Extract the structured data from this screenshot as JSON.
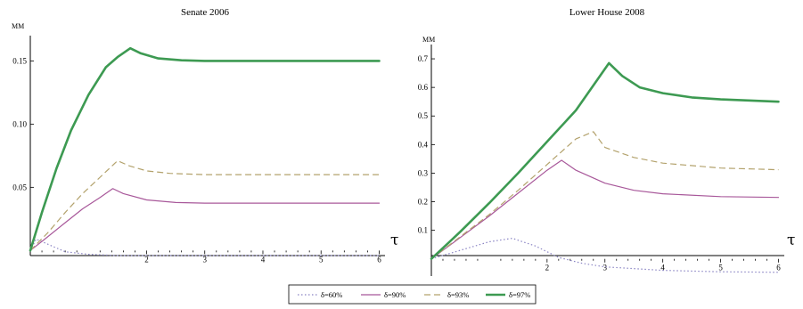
{
  "legend": {
    "items": [
      {
        "label": "δ=60%",
        "color": "#8a84c4",
        "dash": "1.5,2.5",
        "width": 1.2
      },
      {
        "label": "δ=90%",
        "color": "#a8589a",
        "dash": "",
        "width": 1.2
      },
      {
        "label": "δ=93%",
        "color": "#b3a26c",
        "dash": "7,4",
        "width": 1.2
      },
      {
        "label": "δ=97%",
        "color": "#3d9a52",
        "dash": "",
        "width": 2.6
      }
    ]
  },
  "chart_data": [
    {
      "type": "line",
      "title": "Senate 2006",
      "ylabel": "MM",
      "xlabel": "τ",
      "xlim": [
        0,
        6.1
      ],
      "ylim": [
        -0.004,
        0.17
      ],
      "xticks": [
        2,
        3,
        4,
        5,
        6
      ],
      "yticks": [
        0.05,
        0.1,
        0.15
      ],
      "ytick_labels": [
        "0.05",
        "0.10",
        "0.15"
      ],
      "series": [
        {
          "name": "δ=60%",
          "x": [
            0,
            0.1,
            0.3,
            0.6,
            1.0,
            1.5,
            2.0,
            3.0,
            4.0,
            5.0,
            6.0
          ],
          "y": [
            0,
            0.009,
            0.005,
            -0.001,
            -0.003,
            -0.004,
            -0.004,
            -0.004,
            -0.004,
            -0.004,
            -0.004
          ]
        },
        {
          "name": "δ=90%",
          "x": [
            0,
            0.25,
            0.6,
            0.9,
            1.2,
            1.42,
            1.6,
            2.0,
            2.5,
            3.0,
            4.0,
            5.0,
            6.0
          ],
          "y": [
            0,
            0.009,
            0.022,
            0.033,
            0.042,
            0.049,
            0.045,
            0.04,
            0.038,
            0.0375,
            0.0375,
            0.0375,
            0.0375
          ]
        },
        {
          "name": "δ=93%",
          "x": [
            0,
            0.3,
            0.6,
            0.9,
            1.2,
            1.5,
            1.7,
            2.0,
            2.4,
            3.0,
            4.0,
            5.0,
            6.0
          ],
          "y": [
            0,
            0.014,
            0.03,
            0.045,
            0.058,
            0.071,
            0.067,
            0.063,
            0.061,
            0.06,
            0.06,
            0.06,
            0.06
          ]
        },
        {
          "name": "δ=97%",
          "x": [
            0,
            0.2,
            0.45,
            0.7,
            1.0,
            1.3,
            1.5,
            1.72,
            1.9,
            2.2,
            2.6,
            3.0,
            4.0,
            5.0,
            6.0
          ],
          "y": [
            0,
            0.03,
            0.065,
            0.095,
            0.123,
            0.145,
            0.153,
            0.16,
            0.156,
            0.152,
            0.1505,
            0.15,
            0.15,
            0.15,
            0.15
          ]
        }
      ]
    },
    {
      "type": "line",
      "title": "Lower House 2008",
      "ylabel": "MM",
      "xlabel": "τ",
      "xlim": [
        0,
        6.1
      ],
      "ylim": [
        -0.06,
        0.75
      ],
      "xticks": [
        2,
        3,
        4,
        5,
        6
      ],
      "yticks": [
        0.1,
        0.2,
        0.3,
        0.4,
        0.5,
        0.6,
        0.7
      ],
      "ytick_labels": [
        "0.1",
        "0.2",
        "0.3",
        "0.4",
        "0.5",
        "0.6",
        "0.7"
      ],
      "series": [
        {
          "name": "δ=60%",
          "x": [
            0,
            0.5,
            1.0,
            1.4,
            1.8,
            2.2,
            2.6,
            3.0,
            4.0,
            5.0,
            6.0
          ],
          "y": [
            0,
            0.03,
            0.06,
            0.072,
            0.045,
            0.005,
            -0.015,
            -0.028,
            -0.04,
            -0.045,
            -0.047
          ]
        },
        {
          "name": "δ=90%",
          "x": [
            0,
            0.5,
            1.0,
            1.5,
            2.0,
            2.25,
            2.5,
            3.0,
            3.5,
            4.0,
            5.0,
            6.0
          ],
          "y": [
            0,
            0.075,
            0.15,
            0.23,
            0.31,
            0.345,
            0.31,
            0.265,
            0.24,
            0.228,
            0.218,
            0.215
          ]
        },
        {
          "name": "δ=93%",
          "x": [
            0,
            0.5,
            1.0,
            1.5,
            2.0,
            2.5,
            2.8,
            3.0,
            3.5,
            4.0,
            5.0,
            6.0
          ],
          "y": [
            0,
            0.078,
            0.155,
            0.24,
            0.33,
            0.42,
            0.445,
            0.39,
            0.355,
            0.335,
            0.318,
            0.312
          ]
        },
        {
          "name": "δ=97%",
          "x": [
            0,
            0.5,
            1.0,
            1.5,
            2.0,
            2.5,
            3.07,
            3.3,
            3.6,
            4.0,
            4.5,
            5.0,
            6.0
          ],
          "y": [
            0,
            0.095,
            0.195,
            0.3,
            0.41,
            0.52,
            0.685,
            0.64,
            0.6,
            0.58,
            0.565,
            0.558,
            0.55
          ]
        }
      ]
    }
  ]
}
